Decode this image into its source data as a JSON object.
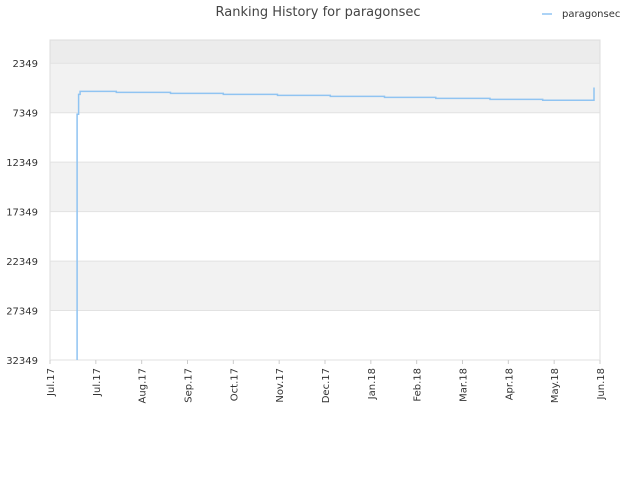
{
  "chart_data": {
    "type": "line",
    "title": "Ranking History for paragonsec",
    "xlabel": "",
    "ylabel": "",
    "y_inverted": true,
    "ylim": [
      32349,
      0
    ],
    "y_ticks": [
      2349,
      7349,
      12349,
      17349,
      22349,
      27349,
      32349
    ],
    "y_tick_labels": [
      "2349",
      "7349",
      "12349",
      "17349",
      "22349",
      "27349",
      "32349"
    ],
    "x_tick_labels": [
      "Jul.17",
      "Jul.17",
      "Aug.17",
      "Sep.17",
      "Oct.17",
      "Nov.17",
      "Dec.17",
      "Jan.18",
      "Feb.18",
      "Mar.18",
      "Apr.18",
      "May.18",
      "Jun.18"
    ],
    "x_range": [
      "2017-06-22",
      "2018-06-22"
    ],
    "grid": true,
    "legend": {
      "position": "top-right"
    },
    "colors": {
      "series": "#90c4f2",
      "band": "#f2f2f2",
      "plot_top_band": "#ececec",
      "grid": "#e2e2e2"
    },
    "series": [
      {
        "name": "paragonsec",
        "step": true,
        "points": [
          [
            "2017-07-10",
            32349
          ],
          [
            "2017-07-10",
            7500
          ],
          [
            "2017-07-11",
            6200
          ],
          [
            "2017-07-11",
            5500
          ],
          [
            "2017-07-12",
            5200
          ],
          [
            "2017-08-05",
            5300
          ],
          [
            "2017-09-10",
            5400
          ],
          [
            "2017-10-15",
            5500
          ],
          [
            "2017-11-20",
            5600
          ],
          [
            "2017-12-25",
            5700
          ],
          [
            "2018-01-30",
            5800
          ],
          [
            "2018-03-05",
            5900
          ],
          [
            "2018-04-10",
            6000
          ],
          [
            "2018-05-15",
            6100
          ],
          [
            "2018-06-18",
            6100
          ],
          [
            "2018-06-18",
            4800
          ]
        ]
      }
    ]
  }
}
